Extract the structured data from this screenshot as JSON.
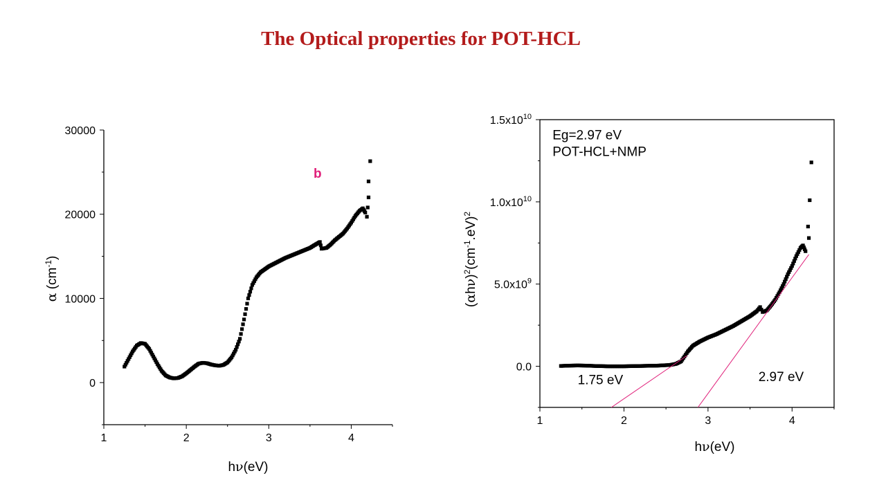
{
  "page": {
    "title": "The Optical properties for POT-HCL"
  },
  "colors": {
    "title": "#b31b1b",
    "marker": "#000000",
    "fit_line": "#e0207a",
    "panel_label": "#e0207a"
  },
  "chart_data": [
    {
      "type": "scatter",
      "panel_label": "b",
      "xlabel_parts": {
        "pre": "h",
        "sym": "ν",
        "post": "(eV)"
      },
      "ylabel_parts": {
        "sym": "α",
        "pre": " (cm",
        "sup": "-1",
        "post": ")"
      },
      "xlim": [
        1,
        4.5
      ],
      "ylim": [
        -5000,
        30000
      ],
      "x_ticks": [
        {
          "value": 1,
          "label": "1"
        },
        {
          "value": 2,
          "label": "2"
        },
        {
          "value": 3,
          "label": "3"
        },
        {
          "value": 4,
          "label": "4"
        }
      ],
      "y_ticks": [
        {
          "value": 0,
          "label": "0"
        },
        {
          "value": 10000,
          "label": "10000"
        },
        {
          "value": 20000,
          "label": "20000"
        },
        {
          "value": 30000,
          "label": "30000"
        }
      ],
      "series": [
        {
          "curve": [
            [
              1.25,
              1900
            ],
            [
              1.3,
              2800
            ],
            [
              1.35,
              3700
            ],
            [
              1.4,
              4400
            ],
            [
              1.45,
              4700
            ],
            [
              1.5,
              4600
            ],
            [
              1.55,
              4000
            ],
            [
              1.6,
              3100
            ],
            [
              1.65,
              2200
            ],
            [
              1.7,
              1400
            ],
            [
              1.75,
              850
            ],
            [
              1.8,
              600
            ],
            [
              1.85,
              500
            ],
            [
              1.9,
              550
            ],
            [
              1.95,
              750
            ],
            [
              2.0,
              1100
            ],
            [
              2.05,
              1500
            ],
            [
              2.1,
              1900
            ],
            [
              2.15,
              2250
            ],
            [
              2.2,
              2350
            ],
            [
              2.25,
              2300
            ],
            [
              2.3,
              2150
            ],
            [
              2.35,
              2050
            ],
            [
              2.4,
              2000
            ],
            [
              2.45,
              2100
            ],
            [
              2.5,
              2400
            ],
            [
              2.55,
              3000
            ],
            [
              2.6,
              3900
            ],
            [
              2.65,
              5200
            ],
            [
              2.7,
              7500
            ],
            [
              2.75,
              10000
            ],
            [
              2.8,
              11600
            ],
            [
              2.85,
              12500
            ],
            [
              2.9,
              13100
            ],
            [
              3.0,
              13800
            ],
            [
              3.1,
              14300
            ],
            [
              3.2,
              14800
            ],
            [
              3.3,
              15200
            ],
            [
              3.4,
              15600
            ],
            [
              3.5,
              16000
            ],
            [
              3.55,
              16300
            ],
            [
              3.62,
              16700
            ],
            [
              3.64,
              15900
            ],
            [
              3.7,
              16000
            ],
            [
              3.75,
              16400
            ],
            [
              3.8,
              16900
            ],
            [
              3.85,
              17300
            ],
            [
              3.9,
              17700
            ],
            [
              3.95,
              18300
            ],
            [
              4.0,
              19000
            ],
            [
              4.05,
              19800
            ],
            [
              4.1,
              20400
            ],
            [
              4.14,
              20700
            ],
            [
              4.17,
              20200
            ]
          ],
          "extra_points": [
            [
              4.19,
              19700
            ],
            [
              4.2,
              20800
            ],
            [
              4.21,
              22000
            ],
            [
              4.21,
              23900
            ],
            [
              4.23,
              26300
            ]
          ]
        }
      ]
    },
    {
      "type": "scatter",
      "xlabel_parts": {
        "pre": "h",
        "sym": "ν",
        "post": "(eV)"
      },
      "ylabel_parts": {
        "pre": "(",
        "sym1": "α",
        "mid": "h",
        "sym2": "ν",
        "close": ")",
        "sup1": "2",
        "unit": "(cm",
        "sup2": "-1",
        "unit2": ".eV)",
        "sup3": "2"
      },
      "xlim": [
        1,
        4.5
      ],
      "ylim": [
        -2500000000,
        15000000000
      ],
      "x_ticks": [
        {
          "value": 1,
          "label": "1"
        },
        {
          "value": 2,
          "label": "2"
        },
        {
          "value": 3,
          "label": "3"
        },
        {
          "value": 4,
          "label": "4"
        }
      ],
      "y_ticks": [
        {
          "value": 0,
          "label": "0.0",
          "exp": ""
        },
        {
          "value": 5000000000,
          "label": "5.0x10",
          "exp": "9"
        },
        {
          "value": 10000000000,
          "label": "1.0x10",
          "exp": "10"
        },
        {
          "value": 15000000000,
          "label": "1.5x10",
          "exp": "10"
        }
      ],
      "annotations": [
        {
          "text": "Eg=2.97 eV",
          "x": 1.15,
          "y": 13800000000
        },
        {
          "text": "POT-HCL+NMP",
          "x": 1.15,
          "y": 12800000000
        },
        {
          "text": "1.75 eV",
          "x": 1.45,
          "y": -1100000000
        },
        {
          "text": "2.97 eV",
          "x": 3.6,
          "y": -900000000
        }
      ],
      "fit_lines": [
        {
          "x": [
            1.85,
            2.75
          ],
          "y": [
            -2500000000,
            650000000
          ]
        },
        {
          "x": [
            2.88,
            4.2
          ],
          "y": [
            -2500000000,
            6800000000
          ]
        }
      ],
      "series": [
        {
          "curve": [
            [
              1.25,
              20000000
            ],
            [
              1.35,
              40000000
            ],
            [
              1.45,
              50000000
            ],
            [
              1.55,
              40000000
            ],
            [
              1.65,
              20000000
            ],
            [
              1.8,
              0
            ],
            [
              2.0,
              0
            ],
            [
              2.2,
              20000000
            ],
            [
              2.4,
              40000000
            ],
            [
              2.55,
              80000000
            ],
            [
              2.62,
              150000000
            ],
            [
              2.68,
              300000000
            ],
            [
              2.72,
              600000000
            ],
            [
              2.76,
              900000000
            ],
            [
              2.82,
              1250000000
            ],
            [
              2.9,
              1500000000
            ],
            [
              3.0,
              1750000000
            ],
            [
              3.1,
              1950000000
            ],
            [
              3.2,
              2200000000
            ],
            [
              3.3,
              2450000000
            ],
            [
              3.4,
              2750000000
            ],
            [
              3.5,
              3050000000
            ],
            [
              3.58,
              3350000000
            ],
            [
              3.62,
              3600000000
            ],
            [
              3.65,
              3300000000
            ],
            [
              3.7,
              3400000000
            ],
            [
              3.75,
              3700000000
            ],
            [
              3.8,
              4050000000
            ],
            [
              3.85,
              4500000000
            ],
            [
              3.9,
              5000000000
            ],
            [
              3.95,
              5600000000
            ],
            [
              4.0,
              6100000000
            ],
            [
              4.05,
              6700000000
            ],
            [
              4.1,
              7200000000
            ],
            [
              4.13,
              7350000000
            ],
            [
              4.16,
              7000000000
            ]
          ],
          "extra_points": [
            [
              4.2,
              7800000000
            ],
            [
              4.19,
              8500000000
            ],
            [
              4.21,
              10100000000
            ],
            [
              4.23,
              12400000000
            ]
          ]
        }
      ]
    }
  ]
}
